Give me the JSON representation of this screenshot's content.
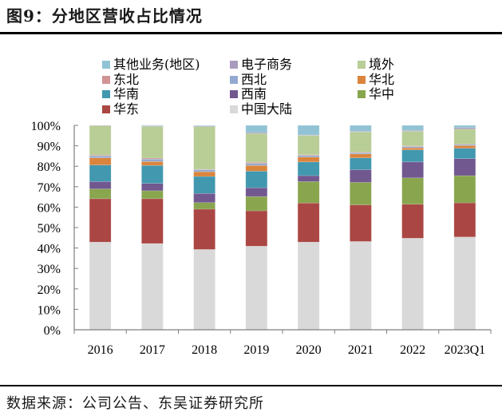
{
  "title": "图9：分地区营收占比情况",
  "source": "数据来源：公司公告、东吴证券研究所",
  "chart_data": {
    "type": "bar",
    "stacked": true,
    "percent_stacked": true,
    "title": "图9：分地区营收占比情况",
    "xlabel": "",
    "ylabel": "",
    "ylim": [
      0,
      100
    ],
    "yticks": [
      "0%",
      "10%",
      "20%",
      "30%",
      "40%",
      "50%",
      "60%",
      "70%",
      "80%",
      "90%",
      "100%"
    ],
    "grid": false,
    "legend_position": "top",
    "categories": [
      "2016",
      "2017",
      "2018",
      "2019",
      "2020",
      "2021",
      "2022",
      "2023Q1"
    ],
    "series": [
      {
        "name": "中国大陆",
        "color": "#d9d9d9",
        "values": [
          42.9,
          42.2,
          39.3,
          40.9,
          42.9,
          43.2,
          44.8,
          45.4
        ]
      },
      {
        "name": "华东",
        "color": "#aa4643",
        "values": [
          21.2,
          21.9,
          19.7,
          17.3,
          19.1,
          17.9,
          16.6,
          16.7
        ]
      },
      {
        "name": "华中",
        "color": "#89a54e",
        "values": [
          4.8,
          3.9,
          3.2,
          7.0,
          10.5,
          11.0,
          12.9,
          13.3
        ]
      },
      {
        "name": "西南",
        "color": "#71588f",
        "values": [
          3.6,
          3.6,
          4.5,
          4.3,
          2.9,
          6.2,
          7.8,
          8.3
        ]
      },
      {
        "name": "华南",
        "color": "#4198af",
        "values": [
          8.1,
          8.8,
          8.3,
          8.1,
          6.7,
          5.8,
          5.9,
          5.1
        ]
      },
      {
        "name": "华北",
        "color": "#db843d",
        "values": [
          3.5,
          1.9,
          2.3,
          2.8,
          2.4,
          1.9,
          1.0,
          1.3
        ]
      },
      {
        "name": "西北",
        "color": "#93a9cf",
        "values": [
          1.0,
          1.2,
          1.0,
          1.0,
          0.8,
          0.6,
          0.6,
          0.6
        ]
      },
      {
        "name": "东北",
        "color": "#d19392",
        "values": [
          0.4,
          0.5,
          0.2,
          0.5,
          0.3,
          0.3,
          0.3,
          0.1
        ]
      },
      {
        "name": "境外",
        "color": "#b9cd96",
        "values": [
          14.4,
          15.5,
          20.9,
          14.1,
          9.5,
          9.9,
          7.2,
          7.4
        ]
      },
      {
        "name": "电子商务",
        "color": "#a99bbd",
        "values": [
          0.1,
          0.3,
          0.3,
          0.5,
          0.2,
          0.3,
          0.4,
          0.7
        ]
      },
      {
        "name": "其他业务(地区)",
        "color": "#92c3d5",
        "values": [
          0.0,
          0.2,
          0.3,
          3.5,
          4.7,
          2.9,
          2.5,
          1.1
        ]
      }
    ],
    "legend_order": [
      "其他业务(地区)",
      "电子商务",
      "境外",
      "东北",
      "西北",
      "华北",
      "华南",
      "西南",
      "华中",
      "华东",
      "中国大陆"
    ]
  }
}
